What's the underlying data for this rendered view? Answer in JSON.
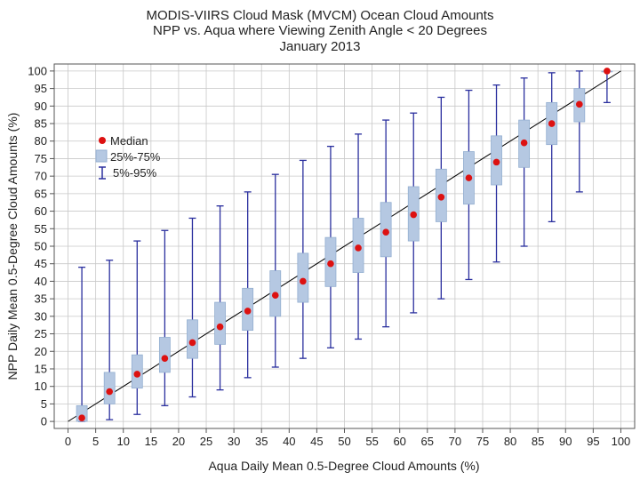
{
  "chart_data": {
    "type": "boxplot",
    "title": [
      "MODIS-VIIRS Cloud Mask (MVCM) Ocean Cloud Amounts",
      "NPP vs. Aqua where Viewing Zenith Angle < 20 Degrees",
      "January 2013"
    ],
    "xlabel": "Aqua Daily Mean 0.5-Degree Cloud Amounts (%)",
    "ylabel": "NPP Daily Mean 0.5-Degree Cloud Amounts (%)",
    "xlim": [
      -2.5,
      102.5
    ],
    "ylim": [
      -2,
      102
    ],
    "xticks": [
      0,
      5,
      10,
      15,
      20,
      25,
      30,
      35,
      40,
      45,
      50,
      55,
      60,
      65,
      70,
      75,
      80,
      85,
      90,
      95,
      100
    ],
    "yticks": [
      0,
      5,
      10,
      15,
      20,
      25,
      30,
      35,
      40,
      45,
      50,
      55,
      60,
      65,
      70,
      75,
      80,
      85,
      90,
      95,
      100
    ],
    "grid": true,
    "legend": {
      "position": "upper-left",
      "entries": [
        "Median",
        "25%-75%",
        "5%-95%"
      ]
    },
    "colors": {
      "median": "#dd1111",
      "box_fill": "#b5c8e2",
      "box_edge": "#93aed0",
      "whisker": "#2a2f9e",
      "grid": "#c8c8c8",
      "diagonal": "#000000"
    },
    "reference_line": {
      "from": [
        0,
        0
      ],
      "to": [
        100,
        100
      ]
    },
    "x": [
      2.5,
      7.5,
      12.5,
      17.5,
      22.5,
      27.5,
      32.5,
      37.5,
      42.5,
      47.5,
      52.5,
      57.5,
      62.5,
      67.5,
      72.5,
      77.5,
      82.5,
      87.5,
      92.5,
      97.5
    ],
    "median": [
      1,
      8.5,
      13.5,
      18,
      22.5,
      27,
      31.5,
      36,
      40,
      45,
      49.5,
      54,
      59,
      64,
      69.5,
      74,
      79.5,
      85,
      90.5,
      100
    ],
    "q1": [
      0,
      5,
      9.5,
      14,
      18,
      22,
      26,
      30,
      34,
      38.5,
      42.5,
      47,
      51.5,
      57,
      62,
      67.5,
      72.5,
      79,
      85.5,
      100
    ],
    "q3": [
      4.5,
      14,
      19,
      24,
      29,
      34,
      38,
      43,
      48,
      52.5,
      58,
      62.5,
      67,
      72,
      77,
      81.5,
      86,
      91,
      95,
      100
    ],
    "p5": [
      0,
      0.5,
      2,
      4.5,
      7,
      9,
      12.5,
      15.5,
      18,
      21,
      23.5,
      27,
      31,
      35,
      40.5,
      45.5,
      50,
      57,
      65.5,
      91
    ],
    "p95": [
      44,
      46,
      51.5,
      54.5,
      58,
      61.5,
      65.5,
      70.5,
      74.5,
      78.5,
      82,
      86,
      88,
      92.5,
      94.5,
      96,
      98,
      99.5,
      100,
      100
    ]
  }
}
